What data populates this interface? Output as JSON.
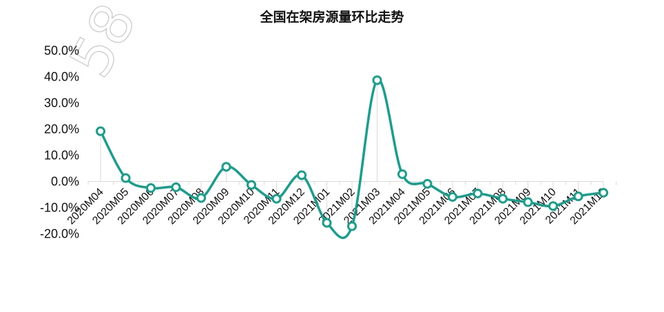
{
  "watermark": "58",
  "chart_data": {
    "type": "line",
    "title": "全国在架房源量环比走势",
    "xlabel": "",
    "ylabel": "",
    "ylim": [
      -20,
      50
    ],
    "yticks": [
      -20,
      -10,
      0,
      10,
      20,
      30,
      40,
      50
    ],
    "ytick_labels": [
      "-20.0%",
      "-10.0%",
      "0.0%",
      "10.0%",
      "20.0%",
      "30.0%",
      "40.0%",
      "50.0%"
    ],
    "grid": false,
    "legend": "none",
    "line_color": "#14a08c",
    "categories": [
      "2020M04",
      "2020M05",
      "2020M06",
      "2020M07",
      "2020M08",
      "2020M09",
      "2020M10",
      "2020M11",
      "2020M12",
      "2021M01",
      "2021M02",
      "2021M03",
      "2021M04",
      "2021M05",
      "2021M06",
      "2021M07",
      "2021M08",
      "2021M09",
      "2021M10",
      "2021M11",
      "2021M12"
    ],
    "series": [
      {
        "values": [
          19.2,
          1.3,
          -2.5,
          -2.2,
          -6.3,
          5.6,
          -1.3,
          -6.6,
          2.4,
          -15.8,
          -17.1,
          38.7,
          2.8,
          -0.9,
          -5.9,
          -4.6,
          -6.6,
          -7.9,
          -9.4,
          -5.7,
          -4.3
        ]
      }
    ]
  }
}
